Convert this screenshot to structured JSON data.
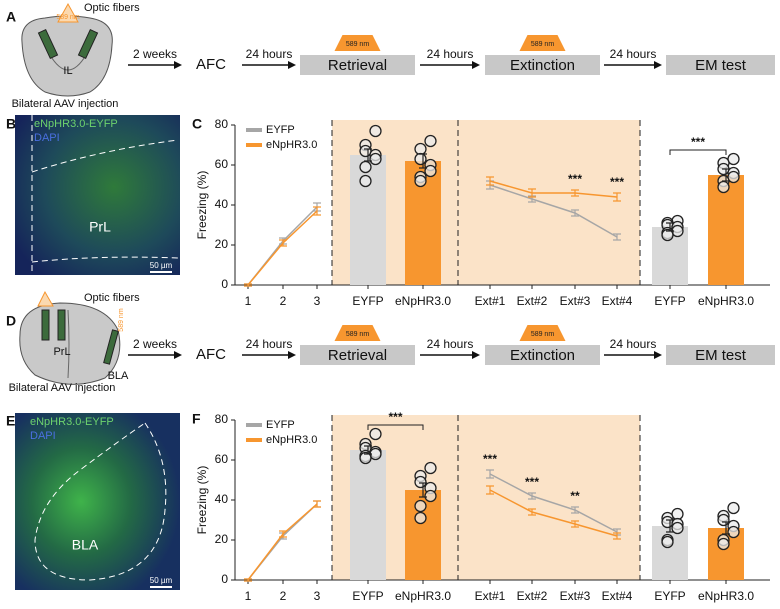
{
  "panel_labels": [
    "A",
    "B",
    "C",
    "D",
    "E",
    "F"
  ],
  "panel_a": {
    "fibers": "Optic fibers",
    "light": "589 nm",
    "region": "IL",
    "injection": "Bilateral AAV injection"
  },
  "panel_d": {
    "fibers": "Optic fibers",
    "light": "589 nm",
    "region": "PrL",
    "region2": "BLA",
    "injection": "Bilateral AAV injection"
  },
  "flow_a": {
    "intervals": [
      "2 weeks",
      "24 hours",
      "24 hours",
      "24 hours"
    ],
    "steps": [
      "AFC",
      "Retrieval",
      "Extinction",
      "EM test"
    ],
    "light": [
      null,
      "589 nm",
      "589 nm",
      null
    ]
  },
  "flow_d": {
    "intervals": [
      "2 weeks",
      "24 hours",
      "24 hours",
      "24 hours"
    ],
    "steps": [
      "AFC",
      "Retrieval",
      "Extinction",
      "EM test"
    ],
    "light": [
      null,
      "589 nm",
      "589 nm",
      null
    ]
  },
  "panel_b": {
    "labels": [
      "eNpHR3.0-EYFP",
      "DAPI"
    ],
    "region": "PrL",
    "scale": "50 µm"
  },
  "panel_e": {
    "labels": [
      "eNpHR3.0-EYFP",
      "DAPI"
    ],
    "region": "BLA",
    "scale": "50 µm"
  },
  "chart_data": [
    {
      "type": "combo",
      "ylabel": "Freezing (%)",
      "ylim": [
        0,
        80
      ],
      "yticks": [
        0,
        20,
        40,
        60,
        80
      ],
      "legend": [
        {
          "name": "EYFP",
          "color": "#a6a6a6"
        },
        {
          "name": "eNpHR3.0",
          "color": "#f7962f"
        }
      ],
      "sections": [
        {
          "kind": "line",
          "light": false,
          "categories": [
            "1",
            "2",
            "3"
          ],
          "series": [
            {
              "name": "EYFP",
              "color": "#a6a6a6",
              "values": [
                0,
                22,
                39
              ],
              "errors": [
                0.5,
                1.5,
                2
              ]
            },
            {
              "name": "eNpHR3.0",
              "color": "#f7962f",
              "values": [
                0,
                21,
                37
              ],
              "errors": [
                0.5,
                1.5,
                2
              ]
            }
          ]
        },
        {
          "kind": "bar",
          "light": true,
          "categories": [
            "EYFP",
            "eNpHR3.0"
          ],
          "colors": [
            "#d9d9d9",
            "#f7962f"
          ],
          "values": [
            65,
            62
          ],
          "errors": [
            3,
            3.5
          ],
          "points": [
            [
              77,
              70,
              67,
              65,
              63,
              59,
              52
            ],
            [
              72,
              68,
              63,
              60,
              57,
              54,
              52
            ]
          ]
        },
        {
          "kind": "line",
          "light": true,
          "categories": [
            "Ext#1",
            "Ext#2",
            "Ext#3",
            "Ext#4"
          ],
          "series": [
            {
              "name": "EYFP",
              "color": "#a6a6a6",
              "values": [
                50,
                43,
                36,
                24
              ],
              "errors": [
                2,
                1.5,
                1.5,
                1.5
              ]
            },
            {
              "name": "eNpHR3.0",
              "color": "#f7962f",
              "values": [
                52,
                46,
                46,
                44
              ],
              "errors": [
                2,
                2,
                1.5,
                2
              ]
            }
          ],
          "significance": [
            null,
            null,
            "***",
            "***"
          ]
        },
        {
          "kind": "bar",
          "light": false,
          "categories": [
            "EYFP",
            "eNpHR3.0"
          ],
          "colors": [
            "#d9d9d9",
            "#f7962f"
          ],
          "values": [
            29,
            55
          ],
          "errors": [
            2,
            3
          ],
          "points": [
            [
              32,
              31,
              30,
              29,
              27,
              26,
              25
            ],
            [
              63,
              61,
              58,
              56,
              54,
              52,
              49
            ]
          ],
          "significance": "***"
        }
      ]
    },
    {
      "type": "combo",
      "ylabel": "Freezing (%)",
      "ylim": [
        0,
        80
      ],
      "yticks": [
        0,
        20,
        40,
        60,
        80
      ],
      "legend": [
        {
          "name": "EYFP",
          "color": "#a6a6a6"
        },
        {
          "name": "eNpHR3.0",
          "color": "#f7962f"
        }
      ],
      "sections": [
        {
          "kind": "line",
          "light": false,
          "categories": [
            "1",
            "2",
            "3"
          ],
          "series": [
            {
              "name": "EYFP",
              "color": "#a6a6a6",
              "values": [
                0,
                22,
                38
              ],
              "errors": [
                0.5,
                1.5,
                1.5
              ]
            },
            {
              "name": "eNpHR3.0",
              "color": "#f7962f",
              "values": [
                0,
                23,
                38
              ],
              "errors": [
                0.5,
                1.5,
                1.5
              ]
            }
          ]
        },
        {
          "kind": "bar",
          "light": true,
          "categories": [
            "EYFP",
            "eNpHR3.0"
          ],
          "colors": [
            "#d9d9d9",
            "#f7962f"
          ],
          "values": [
            65,
            45
          ],
          "errors": [
            2,
            3.5
          ],
          "points": [
            [
              73,
              68,
              66,
              64,
              63,
              62,
              61
            ],
            [
              56,
              52,
              49,
              46,
              42,
              37,
              31
            ]
          ],
          "significance": "***"
        },
        {
          "kind": "line",
          "light": true,
          "categories": [
            "Ext#1",
            "Ext#2",
            "Ext#3",
            "Ext#4"
          ],
          "series": [
            {
              "name": "EYFP",
              "color": "#a6a6a6",
              "values": [
                53,
                42,
                35,
                24
              ],
              "errors": [
                2,
                1.5,
                1.5,
                1.5
              ]
            },
            {
              "name": "eNpHR3.0",
              "color": "#f7962f",
              "values": [
                45,
                34,
                28,
                22
              ],
              "errors": [
                2,
                1.5,
                1.5,
                1.5
              ]
            }
          ],
          "significance": [
            "***",
            "***",
            "**",
            null
          ]
        },
        {
          "kind": "bar",
          "light": false,
          "categories": [
            "EYFP",
            "eNpHR3.0"
          ],
          "colors": [
            "#d9d9d9",
            "#f7962f"
          ],
          "values": [
            27,
            26
          ],
          "errors": [
            3,
            3
          ],
          "points": [
            [
              33,
              31,
              29,
              28,
              26,
              20,
              19
            ],
            [
              36,
              32,
              30,
              27,
              24,
              20,
              18
            ]
          ]
        }
      ]
    }
  ]
}
